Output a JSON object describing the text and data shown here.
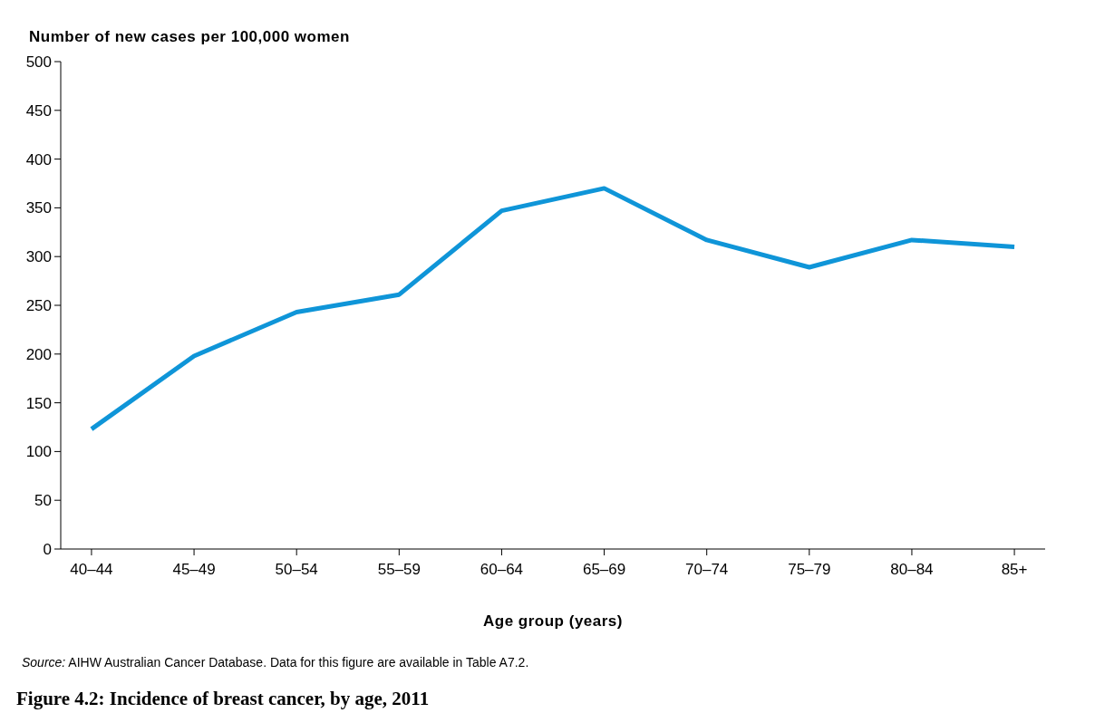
{
  "chart_data": {
    "type": "line",
    "title": "Figure 4.2: Incidence of breast cancer, by age, 2011",
    "ylabel": "Number of new cases per 100,000 women",
    "xlabel": "Age group (years)",
    "annotations": [
      "Source: AIHW Australian Cancer Database. Data for this figure are available in Table A7.2."
    ],
    "categories": [
      "40–44",
      "45–49",
      "50–54",
      "55–59",
      "60–64",
      "65–69",
      "70–74",
      "75–79",
      "80–84",
      "85+"
    ],
    "series": [
      {
        "color": "#0f95d8",
        "values": [
          123,
          198,
          243,
          261,
          347,
          370,
          317,
          289,
          317,
          310
        ]
      }
    ],
    "ylim": [
      0,
      500
    ],
    "yticks": [
      0,
      50,
      100,
      150,
      200,
      250,
      300,
      350,
      400,
      450,
      500
    ]
  }
}
